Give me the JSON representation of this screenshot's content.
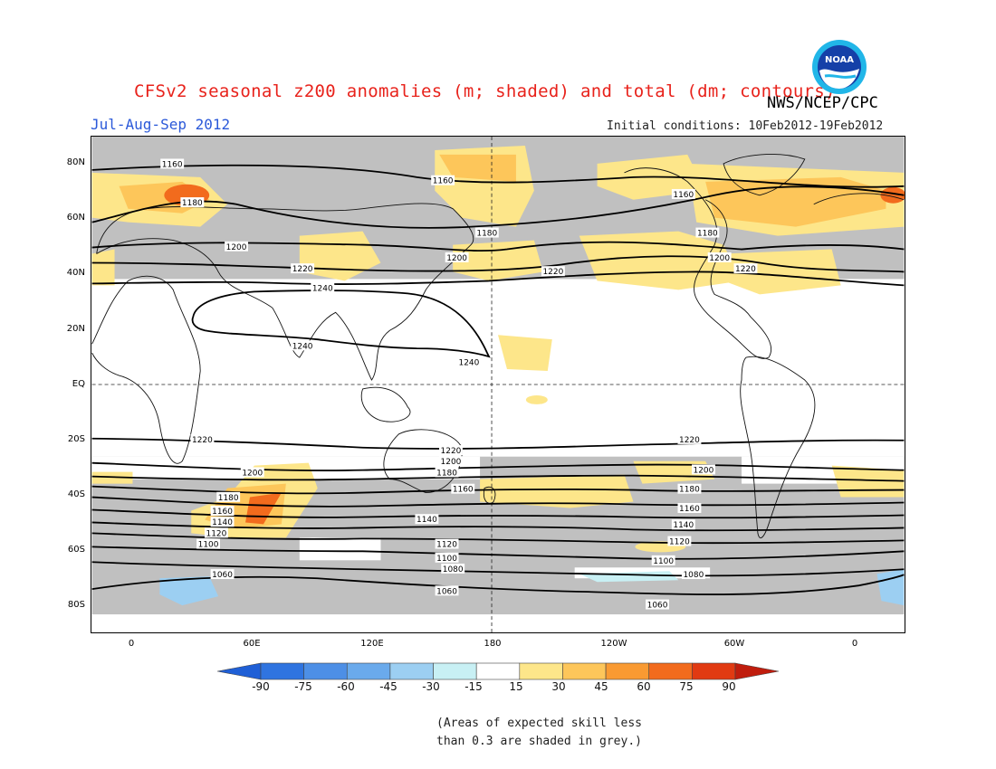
{
  "title": "CFSv2 seasonal z200 anomalies (m; shaded) and total (dm; contours)",
  "org": "NWS/NCEP/CPC",
  "logo_text": "NOAA",
  "period": "Jul-Aug-Sep 2012",
  "initial_conditions": "Initial conditions: 10Feb2012-19Feb2012",
  "lat_labels": [
    "80N",
    "60N",
    "40N",
    "20N",
    "EQ",
    "20S",
    "40S",
    "60S",
    "80S"
  ],
  "lon_labels": [
    "0",
    "60E",
    "120E",
    "180",
    "120W",
    "60W",
    "0"
  ],
  "colorbar": {
    "labels": [
      "-90",
      "-75",
      "-60",
      "-45",
      "-30",
      "-15",
      "15",
      "30",
      "45",
      "60",
      "75",
      "90"
    ],
    "colors": [
      "#1f5fd6",
      "#2f74e0",
      "#4d8fe6",
      "#6aaaec",
      "#9ccff2",
      "#c8f0f4",
      "#ffffff",
      "#fde68a",
      "#fdc65a",
      "#f99a32",
      "#f26b1d",
      "#e13a12",
      "#c01d0d"
    ]
  },
  "contour_labels": [
    {
      "text": "1160",
      "lon": 20,
      "lat": 80
    },
    {
      "text": "1160",
      "lon": 155,
      "lat": 74
    },
    {
      "text": "1160",
      "lon": -85,
      "lat": 69
    },
    {
      "text": "1180",
      "lon": 30,
      "lat": 66
    },
    {
      "text": "1180",
      "lon": 177,
      "lat": 55
    },
    {
      "text": "1180",
      "lon": -73,
      "lat": 55
    },
    {
      "text": "1200",
      "lon": 52,
      "lat": 50
    },
    {
      "text": "1200",
      "lon": 162,
      "lat": 46
    },
    {
      "text": "1200",
      "lon": -67,
      "lat": 46
    },
    {
      "text": "1220",
      "lon": 85,
      "lat": 42
    },
    {
      "text": "1220",
      "lon": -150,
      "lat": 41
    },
    {
      "text": "1220",
      "lon": -54,
      "lat": 42
    },
    {
      "text": "1240",
      "lon": 95,
      "lat": 35
    },
    {
      "text": "1240",
      "lon": 85,
      "lat": 14
    },
    {
      "text": "1240",
      "lon": 168,
      "lat": 8
    },
    {
      "text": "1220",
      "lon": 35,
      "lat": -20
    },
    {
      "text": "1220",
      "lon": 159,
      "lat": -24
    },
    {
      "text": "1220",
      "lon": -82,
      "lat": -20
    },
    {
      "text": "1200",
      "lon": 60,
      "lat": -32
    },
    {
      "text": "1200",
      "lon": 159,
      "lat": -28
    },
    {
      "text": "1200",
      "lon": -75,
      "lat": -31
    },
    {
      "text": "1180",
      "lon": 157,
      "lat": -32
    },
    {
      "text": "1180",
      "lon": 48,
      "lat": -41
    },
    {
      "text": "1180",
      "lon": -82,
      "lat": -38
    },
    {
      "text": "1160",
      "lon": 165,
      "lat": -38
    },
    {
      "text": "1160",
      "lon": 45,
      "lat": -46
    },
    {
      "text": "1160",
      "lon": -82,
      "lat": -45
    },
    {
      "text": "1140",
      "lon": 45,
      "lat": -50
    },
    {
      "text": "1140",
      "lon": 147,
      "lat": -49
    },
    {
      "text": "1140",
      "lon": -85,
      "lat": -51
    },
    {
      "text": "1120",
      "lon": 42,
      "lat": -54
    },
    {
      "text": "1120",
      "lon": 157,
      "lat": -58
    },
    {
      "text": "1120",
      "lon": -87,
      "lat": -57
    },
    {
      "text": "1100",
      "lon": 38,
      "lat": -58
    },
    {
      "text": "1100",
      "lon": 157,
      "lat": -63
    },
    {
      "text": "1100",
      "lon": -95,
      "lat": -64
    },
    {
      "text": "1080",
      "lon": 160,
      "lat": -67
    },
    {
      "text": "1080",
      "lon": -80,
      "lat": -69
    },
    {
      "text": "1060",
      "lon": 45,
      "lat": -69
    },
    {
      "text": "1060",
      "lon": 157,
      "lat": -75
    },
    {
      "text": "1060",
      "lon": -98,
      "lat": -80
    }
  ],
  "note_line1": "(Areas of expected skill less",
  "note_line2": "than 0.3 are shaded in grey.)"
}
